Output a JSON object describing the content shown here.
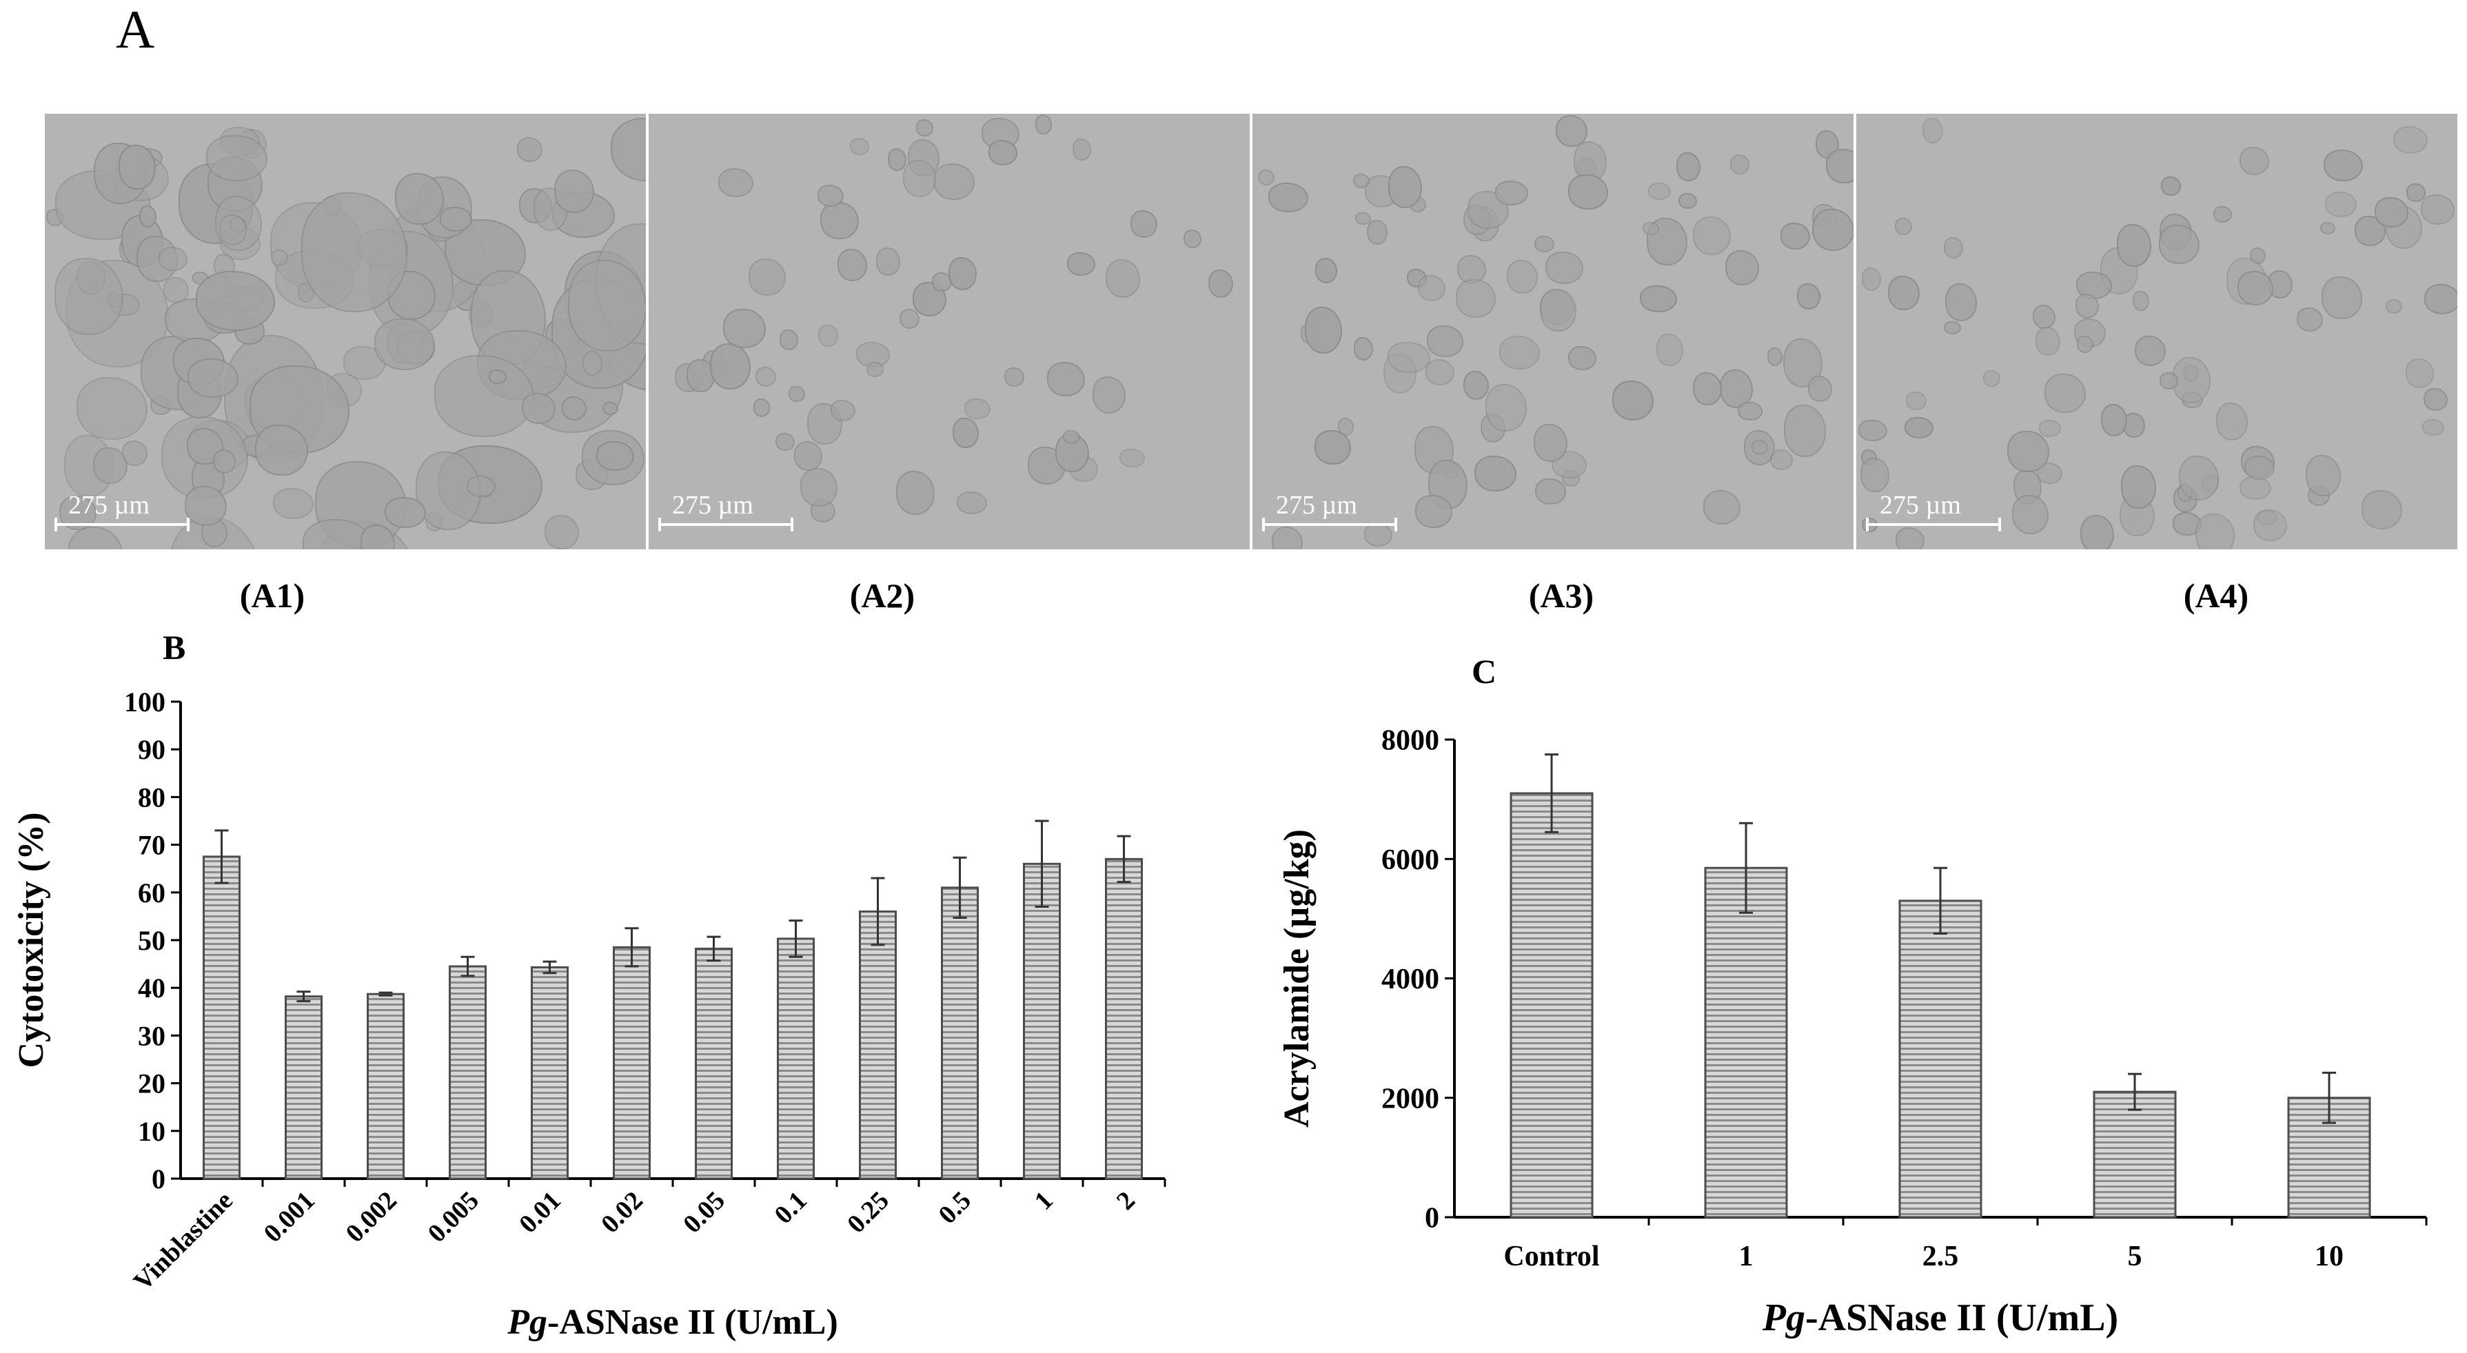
{
  "panel_a": {
    "letter": "A",
    "images": [
      {
        "label": "(A1)",
        "scale": "275 µm",
        "density": "dense"
      },
      {
        "label": "(A2)",
        "scale": "275 µm",
        "density": "sparse"
      },
      {
        "label": "(A3)",
        "scale": "275 µm",
        "density": "medium"
      },
      {
        "label": "(A4)",
        "scale": "275 µm",
        "density": "medium"
      }
    ]
  },
  "colors": {
    "bar_fill": "#d8d8d8",
    "bar_stripe": "#8a8a8a",
    "bar_stroke": "#4d4d4d",
    "axis": "#000000"
  },
  "chart_data": [
    {
      "panel": "B",
      "type": "bar",
      "xlabel_italic": "Pg",
      "xlabel_rest": "-ASNase II (U/mL)",
      "ylabel": "Cytotoxicity (%)",
      "ylim": [
        0,
        100
      ],
      "yticks": [
        0,
        10,
        20,
        30,
        40,
        50,
        60,
        70,
        80,
        90,
        100
      ],
      "categories": [
        "Vinblastine",
        "0.001",
        "0.002",
        "0.005",
        "0.01",
        "0.02",
        "0.05",
        "0.1",
        "0.25",
        "0.5",
        "1",
        "2"
      ],
      "values": [
        67.5,
        38.2,
        38.7,
        44.5,
        44.3,
        48.5,
        48.2,
        50.3,
        56,
        61,
        66,
        67
      ],
      "errors": [
        5.5,
        1,
        0.3,
        2,
        1.2,
        4,
        2.5,
        3.8,
        7,
        6.3,
        9,
        4.8
      ],
      "grid": false,
      "legend": "none"
    },
    {
      "panel": "C",
      "type": "bar",
      "xlabel_italic": "Pg",
      "xlabel_rest": "-ASNase II  (U/mL)",
      "ylabel": "Acrylamide (µg/kg)",
      "ylim": [
        0,
        8000
      ],
      "yticks": [
        0,
        2000,
        4000,
        6000,
        8000
      ],
      "categories": [
        "Control",
        "1",
        "2.5",
        "5",
        "10"
      ],
      "values": [
        7100,
        5850,
        5300,
        2100,
        2000
      ],
      "errors": [
        650,
        750,
        550,
        300,
        420
      ],
      "grid": false,
      "legend": "none"
    }
  ]
}
